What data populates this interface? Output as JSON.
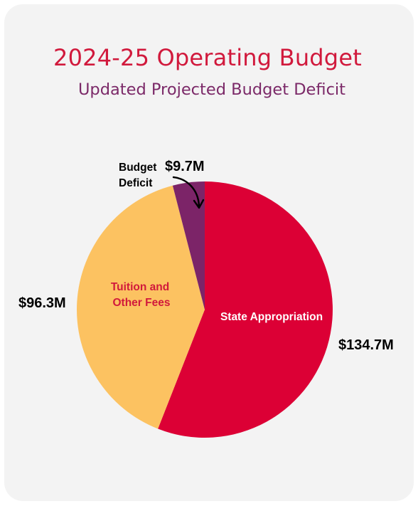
{
  "title": "2024-25 Operating Budget",
  "subtitle": "Updated Projected Budget Deficit",
  "colors": {
    "background": "#f3f3f3",
    "title": "#d1193c",
    "subtitle": "#7b2968",
    "state_appropriation": "#dc0035",
    "tuition": "#fcc261",
    "deficit": "#7c2468"
  },
  "chart_data": {
    "type": "pie",
    "title": "2024-25 Operating Budget",
    "subtitle": "Updated Projected Budget Deficit",
    "units": "$M",
    "slices": [
      {
        "label": "State Appropriation",
        "value": 134.7,
        "value_label": "$134.7M",
        "color": "#dc0035"
      },
      {
        "label": "Tuition and Other Fees",
        "value": 96.3,
        "value_label": "$96.3M",
        "color": "#fcc261"
      },
      {
        "label": "Budget Deficit",
        "value": 9.7,
        "value_label": "$9.7M",
        "color": "#7c2468"
      }
    ]
  },
  "slice_labels": {
    "state": "State Appropriation",
    "tuition_line1": "Tuition and",
    "tuition_line2": "Other Fees",
    "deficit_line1": "Budget",
    "deficit_line2": "Deficit"
  }
}
